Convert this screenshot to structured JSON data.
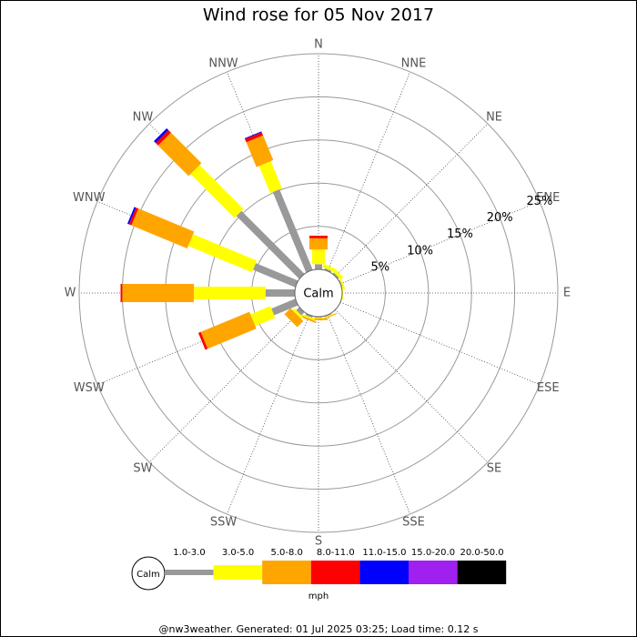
{
  "chart_data": {
    "type": "windrose",
    "title": "Wind rose for 05 Nov 2017",
    "directions": [
      "N",
      "NNE",
      "NE",
      "ENE",
      "E",
      "ESE",
      "SE",
      "SSE",
      "S",
      "SSW",
      "SW",
      "WSW",
      "W",
      "WNW",
      "NW",
      "NNW"
    ],
    "calm_label": "Calm",
    "unit_label": "mph",
    "rlim": [
      0,
      25
    ],
    "rticks": [
      {
        "value": 5,
        "label": "5%"
      },
      {
        "value": 10,
        "label": "10%"
      },
      {
        "value": 15,
        "label": "15%"
      },
      {
        "value": 20,
        "label": "20%"
      },
      {
        "value": 25,
        "label": "25%"
      }
    ],
    "series": [
      {
        "name": "1.0-3.0",
        "color": "#999999",
        "values": [
          0.6,
          0.2,
          0.2,
          0.1,
          0,
          0,
          0,
          0.1,
          0.1,
          0.2,
          0.5,
          3,
          3.4,
          5.3,
          10.3,
          10.1
        ]
      },
      {
        "name": "3.0-5.0",
        "color": "#ffff00",
        "values": [
          1.7,
          0.4,
          0.4,
          0.2,
          0.1,
          0,
          0,
          0.1,
          0.1,
          0.2,
          0.3,
          2.5,
          8.3,
          8,
          7.2,
          3.4
        ]
      },
      {
        "name": "5.0-8.0",
        "color": "#ffa500",
        "values": [
          1.3,
          0,
          0,
          0,
          0,
          0,
          0,
          0.1,
          0.2,
          0.2,
          1,
          6.1,
          8.3,
          7,
          5,
          3.1
        ]
      },
      {
        "name": "8.0-11.0",
        "color": "#ff0000",
        "values": [
          0.3,
          0,
          0,
          0,
          0,
          0,
          0,
          0,
          0,
          0,
          0,
          0.3,
          0.2,
          0.3,
          0.4,
          0.4
        ]
      },
      {
        "name": "11.0-15.0",
        "color": "#0000ff",
        "values": [
          0,
          0,
          0,
          0,
          0,
          0,
          0,
          0,
          0,
          0,
          0,
          0,
          0,
          0.2,
          0.3,
          0.1
        ]
      },
      {
        "name": "15.0-20.0",
        "color": "#a020f0",
        "values": [
          0,
          0,
          0,
          0,
          0,
          0,
          0,
          0,
          0,
          0,
          0,
          0,
          0,
          0,
          0,
          0
        ]
      },
      {
        "name": "20.0-50.0",
        "color": "#000000",
        "values": [
          0,
          0,
          0,
          0,
          0,
          0,
          0,
          0,
          0,
          0,
          0,
          0,
          0,
          0,
          0,
          0
        ]
      }
    ],
    "footer": "@nw3weather.  Generated: 01 Jul 2025 03:25; Load time: 0.12 s"
  }
}
